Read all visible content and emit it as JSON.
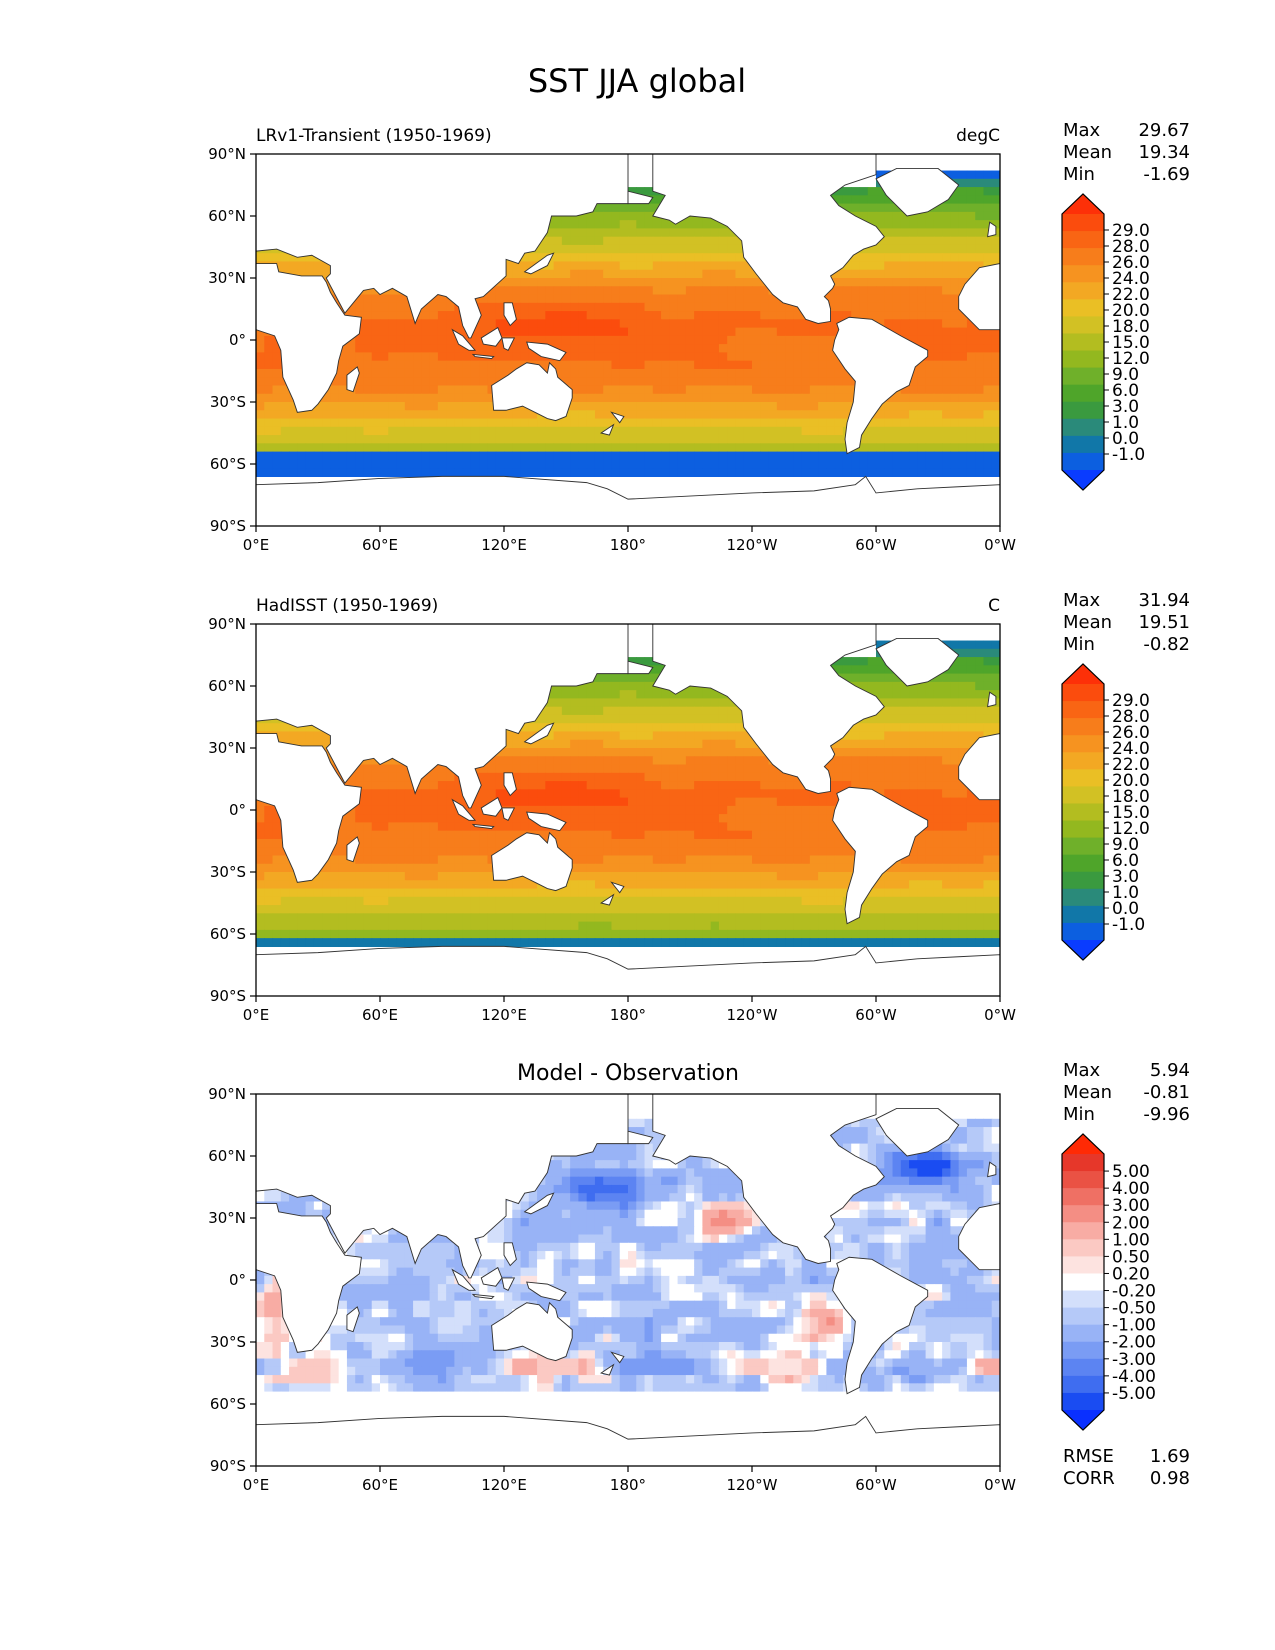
{
  "figure": {
    "title": "SST JJA global"
  },
  "colors": {
    "sst_levels": [
      "#0a3cff",
      "#0c5fe0",
      "#1177a8",
      "#2a8a7a",
      "#3a9a3f",
      "#4fa52a",
      "#6fb02a",
      "#93b81f",
      "#b3bd20",
      "#d2c124",
      "#eabf25",
      "#f3a823",
      "#f69320",
      "#f77d1b",
      "#f96514",
      "#fb4c0d",
      "#fd3008"
    ],
    "diff_levels": [
      "#0a30ff",
      "#1a4cf2",
      "#3f6df0",
      "#5c84f2",
      "#7a9cf4",
      "#98b3f6",
      "#b5c9f8",
      "#d3dffb",
      "#ffffff",
      "#fde3e0",
      "#fbc9c3",
      "#f8aca4",
      "#f48e84",
      "#ef7064",
      "#ea5244",
      "#e6372a",
      "#ff2a05"
    ],
    "land": "#ffffff",
    "coast": "#333333"
  },
  "chart_data": [
    {
      "type": "heatmap",
      "title_left": "LRv1-Transient (1950-1969)",
      "title_right": "degC",
      "title_center": "",
      "xlabel": "",
      "ylabel": "",
      "x_ticks": [
        "0°E",
        "60°E",
        "120°E",
        "180°",
        "120°W",
        "60°W",
        "0°W"
      ],
      "y_ticks": [
        "90°N",
        "60°N",
        "30°N",
        "0°",
        "30°S",
        "60°S",
        "90°S"
      ],
      "xlim": [
        0,
        360
      ],
      "ylim": [
        -90,
        90
      ],
      "stats": [
        {
          "label": "Max",
          "value": "29.67"
        },
        {
          "label": "Mean",
          "value": "19.34"
        },
        {
          "label": "Min",
          "value": "-1.69"
        }
      ],
      "colorbar": {
        "ticks": [
          "29.0",
          "28.0",
          "26.0",
          "24.0",
          "22.0",
          "20.0",
          "18.0",
          "15.0",
          "12.0",
          "9.0",
          "6.0",
          "3.0",
          "1.0",
          "0.0",
          "-1.0"
        ],
        "palette": "sst_levels"
      },
      "field": {
        "kind": "sst",
        "ice_edge_south": -55,
        "warm_pool_max": 29.67,
        "min": -1.69
      },
      "extra_stats": []
    },
    {
      "type": "heatmap",
      "title_left": "HadISST (1950-1969)",
      "title_right": "C",
      "title_center": "",
      "xlabel": "",
      "ylabel": "",
      "x_ticks": [
        "0°E",
        "60°E",
        "120°E",
        "180°",
        "120°W",
        "60°W",
        "0°W"
      ],
      "y_ticks": [
        "90°N",
        "60°N",
        "30°N",
        "0°",
        "30°S",
        "60°S",
        "90°S"
      ],
      "xlim": [
        0,
        360
      ],
      "ylim": [
        -90,
        90
      ],
      "stats": [
        {
          "label": "Max",
          "value": "31.94"
        },
        {
          "label": "Mean",
          "value": "19.51"
        },
        {
          "label": "Min",
          "value": "-0.82"
        }
      ],
      "colorbar": {
        "ticks": [
          "29.0",
          "28.0",
          "26.0",
          "24.0",
          "22.0",
          "20.0",
          "18.0",
          "15.0",
          "12.0",
          "9.0",
          "6.0",
          "3.0",
          "1.0",
          "0.0",
          "-1.0"
        ],
        "palette": "sst_levels"
      },
      "field": {
        "kind": "sst",
        "ice_edge_south": -62,
        "warm_pool_max": 31.94,
        "min": -0.82
      },
      "extra_stats": []
    },
    {
      "type": "heatmap",
      "title_left": "",
      "title_right": "",
      "title_center": "Model - Observation",
      "xlabel": "",
      "ylabel": "",
      "x_ticks": [
        "0°E",
        "60°E",
        "120°E",
        "180°",
        "120°W",
        "60°W",
        "0°W"
      ],
      "y_ticks": [
        "90°N",
        "60°N",
        "30°N",
        "0°",
        "30°S",
        "60°S",
        "90°S"
      ],
      "xlim": [
        0,
        360
      ],
      "ylim": [
        -90,
        90
      ],
      "stats": [
        {
          "label": "Max",
          "value": "5.94"
        },
        {
          "label": "Mean",
          "value": "-0.81"
        },
        {
          "label": "Min",
          "value": "-9.96"
        }
      ],
      "colorbar": {
        "ticks": [
          "5.00",
          "4.00",
          "3.00",
          "2.00",
          "1.00",
          "0.50",
          "0.20",
          "-0.20",
          "-0.50",
          "-1.00",
          "-2.00",
          "-3.00",
          "-4.00",
          "-5.00"
        ],
        "palette": "diff_levels"
      },
      "field": {
        "kind": "diff",
        "ice_edge_south": -55,
        "max": 5.94,
        "min": -9.96
      },
      "extra_stats": [
        {
          "label": "RMSE",
          "value": "1.69"
        },
        {
          "label": "CORR",
          "value": "0.98"
        }
      ]
    }
  ]
}
